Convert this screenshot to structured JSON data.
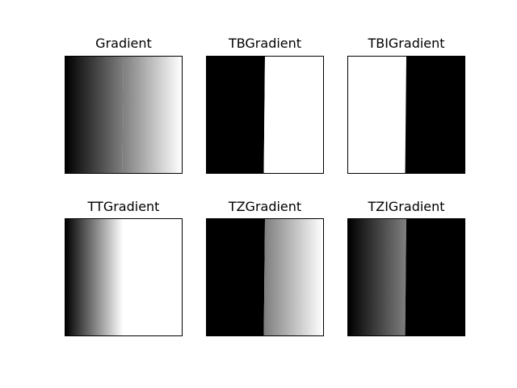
{
  "chart_data": [
    {
      "type": "heatmap",
      "title": "Gradient",
      "variant": "gradient",
      "colormap": "gray",
      "value_range": [
        0,
        255
      ],
      "threshold_at_top": 0.5,
      "threshold_at_bottom": 0.49
    },
    {
      "type": "heatmap",
      "title": "TBGradient",
      "variant": "binary",
      "colormap": "gray",
      "value_range": [
        0,
        255
      ],
      "threshold_at_top": 0.5,
      "threshold_at_bottom": 0.49
    },
    {
      "type": "heatmap",
      "title": "TBIGradient",
      "variant": "binary_inv",
      "colormap": "gray",
      "value_range": [
        0,
        255
      ],
      "threshold_at_top": 0.5,
      "threshold_at_bottom": 0.49
    },
    {
      "type": "heatmap",
      "title": "TTGradient",
      "variant": "trunc",
      "colormap": "gray",
      "value_range": [
        0,
        255
      ],
      "threshold_at_top": 0.5,
      "threshold_at_bottom": 0.49
    },
    {
      "type": "heatmap",
      "title": "TZGradient",
      "variant": "tozero",
      "colormap": "gray",
      "value_range": [
        0,
        255
      ],
      "threshold_at_top": 0.5,
      "threshold_at_bottom": 0.49
    },
    {
      "type": "heatmap",
      "title": "TZIGradient",
      "variant": "tozero_inv",
      "colormap": "gray",
      "value_range": [
        0,
        255
      ],
      "threshold_at_top": 0.5,
      "threshold_at_bottom": 0.49
    }
  ]
}
